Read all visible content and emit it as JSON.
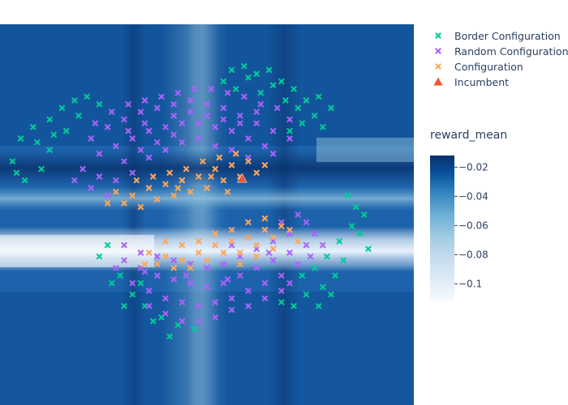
{
  "chart_data": {
    "type": "scatter",
    "title": "",
    "xlabel": "",
    "ylabel": "",
    "background": {
      "type": "heatmap",
      "colorscale": "Blues",
      "colorbar_title": "reward_mean",
      "range": [
        -0.112,
        -0.012
      ],
      "ticks": [
        -0.02,
        -0.04,
        -0.06,
        -0.08,
        -0.1
      ],
      "tick_labels": [
        "−0.02",
        "−0.04",
        "−0.06",
        "−0.08",
        "−0.1"
      ],
      "low_color": "#f7fbff",
      "high_color": "#08306b"
    },
    "legend_position": "top-right",
    "series": [
      {
        "name": "Border Configuration",
        "marker": "x",
        "color": "#00cc96",
        "points": [
          [
            0.03,
            0.36
          ],
          [
            0.05,
            0.3
          ],
          [
            0.08,
            0.27
          ],
          [
            0.12,
            0.25
          ],
          [
            0.15,
            0.22
          ],
          [
            0.18,
            0.2
          ],
          [
            0.21,
            0.19
          ],
          [
            0.24,
            0.21
          ],
          [
            0.19,
            0.24
          ],
          [
            0.16,
            0.28
          ],
          [
            0.12,
            0.33
          ],
          [
            0.1,
            0.38
          ],
          [
            0.06,
            0.41
          ],
          [
            0.04,
            0.39
          ],
          [
            0.09,
            0.31
          ],
          [
            0.13,
            0.29
          ],
          [
            0.56,
            0.12
          ],
          [
            0.59,
            0.11
          ],
          [
            0.62,
            0.13
          ],
          [
            0.65,
            0.12
          ],
          [
            0.68,
            0.15
          ],
          [
            0.71,
            0.17
          ],
          [
            0.74,
            0.2
          ],
          [
            0.76,
            0.24
          ],
          [
            0.78,
            0.27
          ],
          [
            0.72,
            0.22
          ],
          [
            0.66,
            0.16
          ],
          [
            0.6,
            0.14
          ],
          [
            0.54,
            0.15
          ],
          [
            0.57,
            0.17
          ],
          [
            0.63,
            0.18
          ],
          [
            0.69,
            0.2
          ],
          [
            0.73,
            0.26
          ],
          [
            0.7,
            0.28
          ],
          [
            0.77,
            0.19
          ],
          [
            0.8,
            0.22
          ],
          [
            0.26,
            0.58
          ],
          [
            0.24,
            0.61
          ],
          [
            0.29,
            0.66
          ],
          [
            0.32,
            0.71
          ],
          [
            0.35,
            0.74
          ],
          [
            0.39,
            0.77
          ],
          [
            0.43,
            0.79
          ],
          [
            0.47,
            0.8
          ],
          [
            0.41,
            0.82
          ],
          [
            0.37,
            0.78
          ],
          [
            0.3,
            0.74
          ],
          [
            0.27,
            0.68
          ],
          [
            0.34,
            0.68
          ],
          [
            0.84,
            0.45
          ],
          [
            0.86,
            0.48
          ],
          [
            0.88,
            0.5
          ],
          [
            0.85,
            0.53
          ],
          [
            0.82,
            0.57
          ],
          [
            0.79,
            0.61
          ],
          [
            0.76,
            0.64
          ],
          [
            0.73,
            0.66
          ],
          [
            0.81,
            0.66
          ],
          [
            0.78,
            0.69
          ],
          [
            0.74,
            0.71
          ],
          [
            0.71,
            0.74
          ],
          [
            0.68,
            0.73
          ],
          [
            0.87,
            0.55
          ],
          [
            0.89,
            0.59
          ],
          [
            0.83,
            0.62
          ],
          [
            0.8,
            0.71
          ],
          [
            0.77,
            0.74
          ]
        ]
      },
      {
        "name": "Random Configuration",
        "marker": "x",
        "color": "#ab63fa",
        "points": [
          [
            0.22,
            0.3
          ],
          [
            0.26,
            0.27
          ],
          [
            0.3,
            0.25
          ],
          [
            0.34,
            0.23
          ],
          [
            0.38,
            0.22
          ],
          [
            0.42,
            0.21
          ],
          [
            0.46,
            0.2
          ],
          [
            0.5,
            0.21
          ],
          [
            0.54,
            0.22
          ],
          [
            0.58,
            0.24
          ],
          [
            0.62,
            0.26
          ],
          [
            0.66,
            0.28
          ],
          [
            0.7,
            0.3
          ],
          [
            0.24,
            0.34
          ],
          [
            0.28,
            0.32
          ],
          [
            0.32,
            0.3
          ],
          [
            0.36,
            0.28
          ],
          [
            0.4,
            0.27
          ],
          [
            0.44,
            0.26
          ],
          [
            0.48,
            0.26
          ],
          [
            0.52,
            0.27
          ],
          [
            0.56,
            0.28
          ],
          [
            0.6,
            0.3
          ],
          [
            0.64,
            0.32
          ],
          [
            0.2,
            0.38
          ],
          [
            0.24,
            0.4
          ],
          [
            0.28,
            0.41
          ],
          [
            0.32,
            0.39
          ],
          [
            0.36,
            0.35
          ],
          [
            0.4,
            0.33
          ],
          [
            0.44,
            0.31
          ],
          [
            0.48,
            0.3
          ],
          [
            0.52,
            0.32
          ],
          [
            0.56,
            0.33
          ],
          [
            0.6,
            0.35
          ],
          [
            0.66,
            0.34
          ],
          [
            0.7,
            0.25
          ],
          [
            0.67,
            0.22
          ],
          [
            0.63,
            0.21
          ],
          [
            0.59,
            0.19
          ],
          [
            0.55,
            0.18
          ],
          [
            0.51,
            0.17
          ],
          [
            0.47,
            0.17
          ],
          [
            0.43,
            0.18
          ],
          [
            0.39,
            0.19
          ],
          [
            0.35,
            0.2
          ],
          [
            0.31,
            0.21
          ],
          [
            0.27,
            0.23
          ],
          [
            0.23,
            0.26
          ],
          [
            0.3,
            0.36
          ],
          [
            0.34,
            0.33
          ],
          [
            0.38,
            0.31
          ],
          [
            0.42,
            0.29
          ],
          [
            0.46,
            0.23
          ],
          [
            0.5,
            0.24
          ],
          [
            0.54,
            0.25
          ],
          [
            0.58,
            0.26
          ],
          [
            0.62,
            0.23
          ],
          [
            0.26,
            0.45
          ],
          [
            0.22,
            0.43
          ],
          [
            0.18,
            0.41
          ],
          [
            0.42,
            0.24
          ],
          [
            0.35,
            0.26
          ],
          [
            0.31,
            0.28
          ],
          [
            0.3,
            0.62
          ],
          [
            0.34,
            0.64
          ],
          [
            0.38,
            0.66
          ],
          [
            0.42,
            0.67
          ],
          [
            0.46,
            0.68
          ],
          [
            0.5,
            0.69
          ],
          [
            0.54,
            0.68
          ],
          [
            0.58,
            0.66
          ],
          [
            0.62,
            0.64
          ],
          [
            0.66,
            0.62
          ],
          [
            0.7,
            0.6
          ],
          [
            0.74,
            0.58
          ],
          [
            0.32,
            0.68
          ],
          [
            0.36,
            0.7
          ],
          [
            0.4,
            0.72
          ],
          [
            0.44,
            0.73
          ],
          [
            0.48,
            0.74
          ],
          [
            0.52,
            0.73
          ],
          [
            0.56,
            0.72
          ],
          [
            0.6,
            0.7
          ],
          [
            0.64,
            0.68
          ],
          [
            0.68,
            0.66
          ],
          [
            0.72,
            0.63
          ],
          [
            0.76,
            0.55
          ],
          [
            0.78,
            0.58
          ],
          [
            0.74,
            0.52
          ],
          [
            0.7,
            0.55
          ],
          [
            0.66,
            0.57
          ],
          [
            0.62,
            0.59
          ],
          [
            0.58,
            0.61
          ],
          [
            0.54,
            0.63
          ],
          [
            0.5,
            0.64
          ],
          [
            0.46,
            0.63
          ],
          [
            0.42,
            0.62
          ],
          [
            0.38,
            0.61
          ],
          [
            0.34,
            0.6
          ],
          [
            0.3,
            0.58
          ],
          [
            0.72,
            0.5
          ],
          [
            0.68,
            0.52
          ],
          [
            0.64,
            0.54
          ],
          [
            0.6,
            0.56
          ],
          [
            0.56,
            0.58
          ],
          [
            0.4,
            0.76
          ],
          [
            0.44,
            0.78
          ],
          [
            0.48,
            0.78
          ],
          [
            0.36,
            0.74
          ],
          [
            0.52,
            0.77
          ],
          [
            0.56,
            0.75
          ],
          [
            0.6,
            0.74
          ],
          [
            0.64,
            0.72
          ],
          [
            0.68,
            0.7
          ],
          [
            0.35,
            0.65
          ],
          [
            0.45,
            0.66
          ],
          [
            0.55,
            0.67
          ],
          [
            0.65,
            0.6
          ],
          [
            0.75,
            0.61
          ],
          [
            0.28,
            0.64
          ],
          [
            0.7,
            0.68
          ]
        ]
      },
      {
        "name": "Configuration",
        "marker": "x",
        "color": "#fea65a",
        "points": [
          [
            0.28,
            0.44
          ],
          [
            0.32,
            0.45
          ],
          [
            0.36,
            0.43
          ],
          [
            0.4,
            0.42
          ],
          [
            0.44,
            0.41
          ],
          [
            0.48,
            0.4
          ],
          [
            0.52,
            0.38
          ],
          [
            0.56,
            0.37
          ],
          [
            0.6,
            0.36
          ],
          [
            0.3,
            0.47
          ],
          [
            0.34,
            0.48
          ],
          [
            0.38,
            0.46
          ],
          [
            0.42,
            0.45
          ],
          [
            0.46,
            0.44
          ],
          [
            0.5,
            0.43
          ],
          [
            0.54,
            0.41
          ],
          [
            0.58,
            0.4
          ],
          [
            0.62,
            0.39
          ],
          [
            0.45,
            0.38
          ],
          [
            0.49,
            0.36
          ],
          [
            0.53,
            0.35
          ],
          [
            0.57,
            0.34
          ],
          [
            0.33,
            0.41
          ],
          [
            0.37,
            0.4
          ],
          [
            0.41,
            0.39
          ],
          [
            0.26,
            0.47
          ],
          [
            0.64,
            0.37
          ],
          [
            0.43,
            0.43
          ],
          [
            0.51,
            0.4
          ],
          [
            0.55,
            0.44
          ],
          [
            0.36,
            0.6
          ],
          [
            0.4,
            0.61
          ],
          [
            0.44,
            0.62
          ],
          [
            0.48,
            0.6
          ],
          [
            0.52,
            0.58
          ],
          [
            0.56,
            0.57
          ],
          [
            0.6,
            0.56
          ],
          [
            0.64,
            0.54
          ],
          [
            0.68,
            0.53
          ],
          [
            0.38,
            0.63
          ],
          [
            0.42,
            0.64
          ],
          [
            0.46,
            0.64
          ],
          [
            0.5,
            0.62
          ],
          [
            0.54,
            0.6
          ],
          [
            0.58,
            0.6
          ],
          [
            0.62,
            0.58
          ],
          [
            0.66,
            0.56
          ],
          [
            0.7,
            0.54
          ],
          [
            0.52,
            0.55
          ],
          [
            0.56,
            0.54
          ],
          [
            0.6,
            0.52
          ],
          [
            0.64,
            0.51
          ],
          [
            0.44,
            0.58
          ],
          [
            0.48,
            0.57
          ],
          [
            0.4,
            0.57
          ],
          [
            0.35,
            0.63
          ],
          [
            0.58,
            0.63
          ],
          [
            0.62,
            0.61
          ],
          [
            0.66,
            0.59
          ],
          [
            0.72,
            0.57
          ]
        ]
      },
      {
        "name": "Incumbent",
        "marker": "triangle-up",
        "color": "#ef553b",
        "points": [
          [
            0.585,
            0.405
          ]
        ]
      }
    ]
  }
}
